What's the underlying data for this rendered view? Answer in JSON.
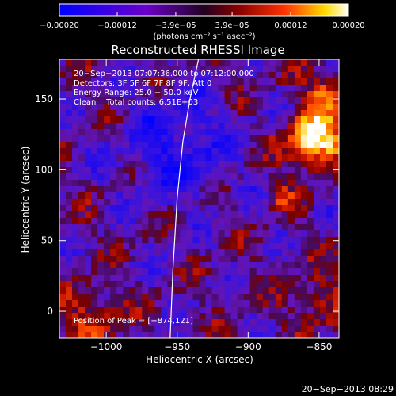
{
  "chart_data": {
    "type": "heatmap",
    "title": "Reconstructed RHESSI Image",
    "xlabel": "Heliocentric X (arcsec)",
    "ylabel": "Heliocentric Y (arcsec)",
    "xlim": [
      -1033,
      -836
    ],
    "ylim": [
      -19,
      178
    ],
    "x_ticks": [
      {
        "value": -1000,
        "label": "−1000"
      },
      {
        "value": -950,
        "label": "−950"
      },
      {
        "value": -900,
        "label": "−900"
      },
      {
        "value": -850,
        "label": "−850"
      }
    ],
    "y_ticks": [
      {
        "value": 0,
        "label": "0"
      },
      {
        "value": 50,
        "label": "50"
      },
      {
        "value": 100,
        "label": "100"
      },
      {
        "value": 150,
        "label": "150"
      }
    ],
    "colorbar": {
      "range": [
        -0.0002,
        0.0002
      ],
      "tick_values": [
        -0.0002,
        -0.00012,
        -3.9e-05,
        3.9e-05,
        0.00012,
        0.0002
      ],
      "tick_labels": [
        "−0.00020",
        "−0.00012",
        "−3.9e−05",
        "3.9e−05",
        "0.00012",
        "0.00020"
      ],
      "units": "(photons cm⁻² s⁻¹ asec⁻²)",
      "colors": [
        "#0000ff",
        "#6a00c8",
        "#880000",
        "#ff3300",
        "#ffdd00",
        "#ffffff"
      ]
    },
    "annotations": [
      "20−Sep−2013 07:07:36.000 to 07:12:00.000",
      "Detectors: 3F 5F 6F 7F 8F 9F, Att 0",
      "Energy Range: 25.0 − 50.0 keV",
      "Clean    Total counts: 6.51E+03"
    ],
    "peak_label": "Position of Peak = [−874,121]",
    "peak": {
      "x": -874,
      "y": 121
    },
    "limb_curve": [
      {
        "x": -955,
        "y": -19
      },
      {
        "x": -953,
        "y": 30
      },
      {
        "x": -950,
        "y": 80
      },
      {
        "x": -946,
        "y": 120
      },
      {
        "x": -941,
        "y": 150
      },
      {
        "x": -935,
        "y": 178
      }
    ]
  },
  "footer": {
    "timestamp": "20−Sep−2013 08:29"
  }
}
